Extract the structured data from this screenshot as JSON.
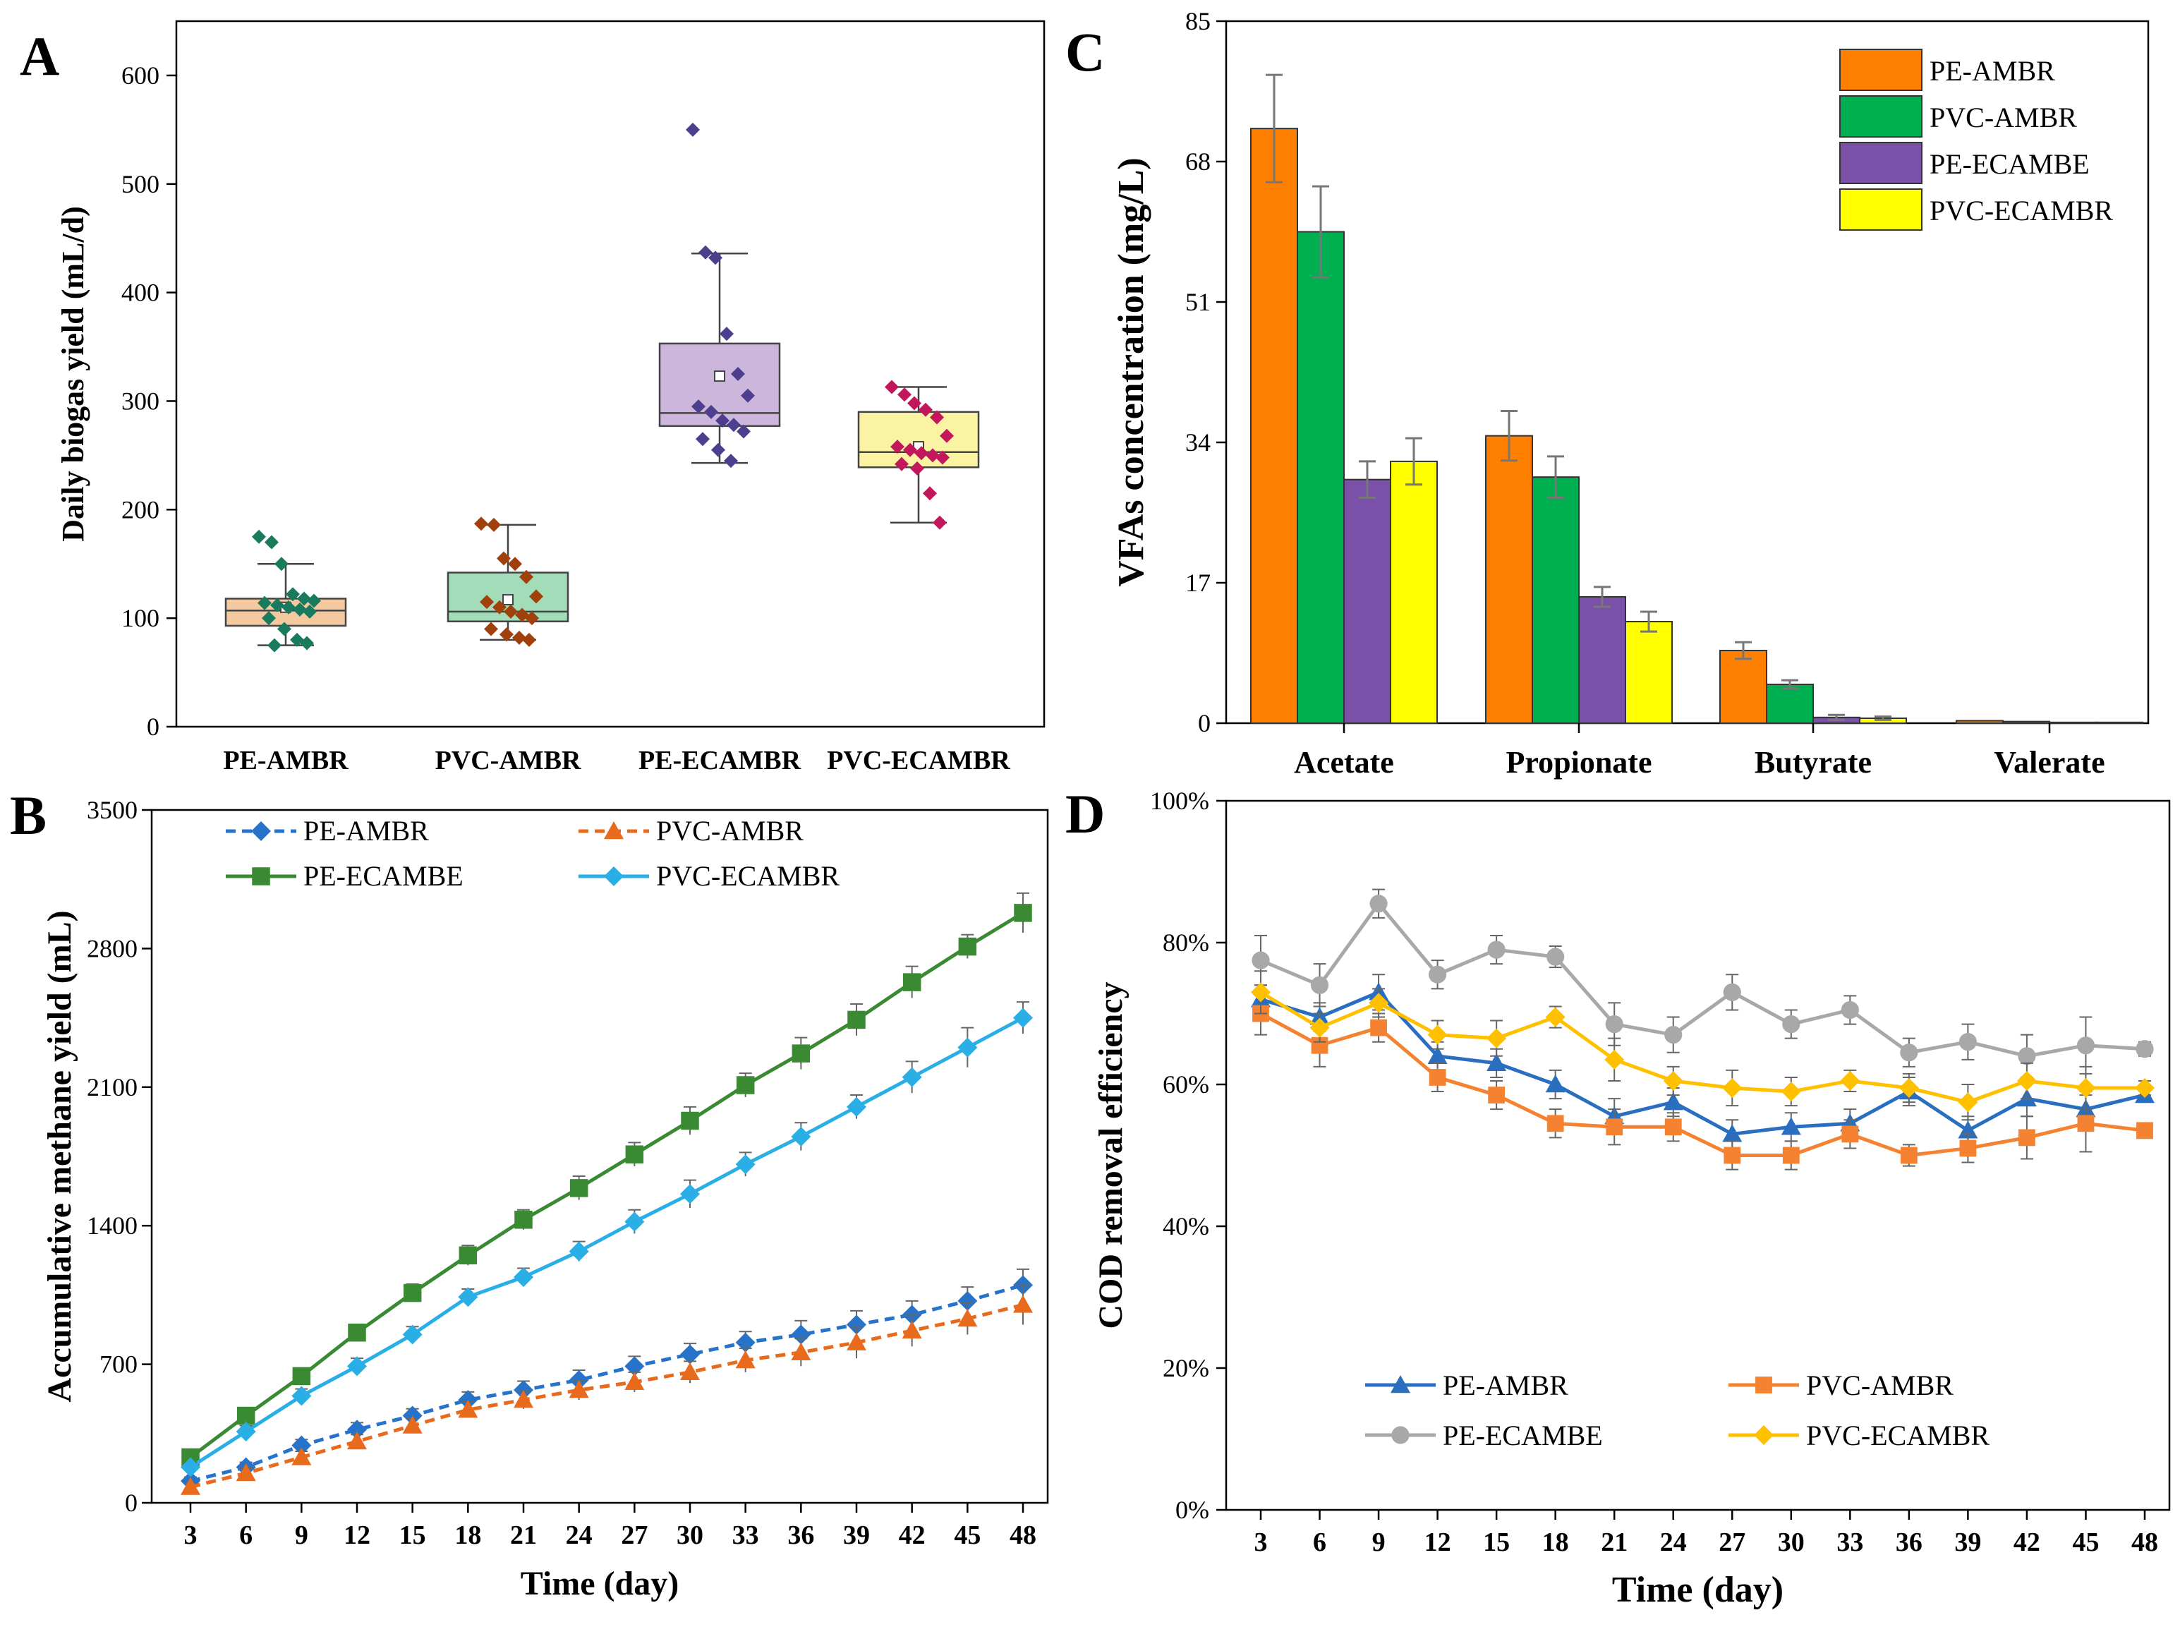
{
  "panels": {
    "A": "A",
    "B": "B",
    "C": "C",
    "D": "D"
  },
  "colors": {
    "pe_ambr_box": "#f5c9a0",
    "pvc_ambr_box": "#a3dcb8",
    "pe_ecambr_box": "#cdb6dc",
    "pvc_ecambr_box": "#fbf3a4",
    "pe_ambr_pts": "#1a7a5e",
    "pvc_ambr_pts": "#a0400c",
    "pe_ecambr_pts": "#4d3f8e",
    "pvc_ecambr_pts": "#c2185b",
    "orange": "#ff8000",
    "green": "#00b050",
    "purple": "#7b50a8",
    "yellow": "#ffff00",
    "b_pe_ambr": "#2673c9",
    "b_pvc_ambr": "#e86a1c",
    "b_pe_ecambe": "#3a8a34",
    "b_pvc_ecambr": "#29aee6",
    "d_pe_ambr": "#2a6fbf",
    "d_pvc_ambr": "#f48231",
    "d_pe_ecambe": "#a8a8a8",
    "d_pvc_ecambr": "#ffc000"
  },
  "chart_data": [
    {
      "id": "A",
      "type": "box",
      "title": "",
      "ylabel": "Daily biogas yield (mL/d)",
      "ylim": [
        0,
        650
      ],
      "yticks": [
        0,
        100,
        200,
        300,
        400,
        500,
        600
      ],
      "categories": [
        "PE-AMBR",
        "PVC-AMBR",
        "PE-ECAMBR",
        "PVC-ECAMBR"
      ],
      "boxes": [
        {
          "name": "PE-AMBR",
          "min": 75,
          "q1": 93,
          "median": 107,
          "q3": 118,
          "max": 150,
          "mean": 110,
          "points": [
            175,
            170,
            150,
            122,
            118,
            116,
            114,
            112,
            110,
            108,
            106,
            100,
            90,
            80,
            77,
            75
          ]
        },
        {
          "name": "PVC-AMBR",
          "min": 80,
          "q1": 97,
          "median": 106,
          "q3": 142,
          "max": 186,
          "mean": 117,
          "points": [
            187,
            186,
            155,
            150,
            138,
            120,
            115,
            110,
            106,
            103,
            100,
            90,
            85,
            82,
            80
          ]
        },
        {
          "name": "PE-ECAMBR",
          "min": 243,
          "q1": 277,
          "median": 289,
          "q3": 353,
          "max": 436,
          "mean": 323,
          "points": [
            550,
            437,
            432,
            362,
            325,
            305,
            295,
            290,
            282,
            278,
            272,
            265,
            255,
            245
          ]
        },
        {
          "name": "PVC-ECAMBR",
          "min": 188,
          "q1": 239,
          "median": 253,
          "q3": 290,
          "max": 313,
          "mean": 258,
          "points": [
            313,
            306,
            298,
            292,
            285,
            268,
            258,
            255,
            252,
            250,
            248,
            242,
            238,
            215,
            188
          ]
        }
      ]
    },
    {
      "id": "B",
      "type": "line",
      "xlabel": "Time (day)",
      "ylabel": "Accumulative methane yield (mL)",
      "ylim": [
        0,
        3500
      ],
      "yticks": [
        0,
        700,
        1400,
        2100,
        2800,
        3500
      ],
      "x": [
        3,
        6,
        9,
        12,
        15,
        18,
        21,
        24,
        27,
        30,
        33,
        36,
        39,
        42,
        45,
        48
      ],
      "series": [
        {
          "name": "PE-AMBR",
          "marker": "diamond",
          "dashed": true,
          "values": [
            110,
            180,
            290,
            370,
            440,
            520,
            570,
            620,
            690,
            750,
            810,
            850,
            900,
            950,
            1020,
            1100
          ],
          "err": [
            20,
            25,
            30,
            35,
            35,
            40,
            45,
            50,
            50,
            55,
            55,
            70,
            70,
            70,
            70,
            80
          ]
        },
        {
          "name": "PVC-AMBR",
          "marker": "triangle",
          "dashed": true,
          "values": [
            80,
            150,
            230,
            310,
            390,
            470,
            520,
            570,
            610,
            660,
            720,
            760,
            810,
            870,
            930,
            1000
          ],
          "err": [
            20,
            25,
            30,
            35,
            35,
            40,
            45,
            50,
            50,
            55,
            60,
            70,
            80,
            80,
            80,
            100
          ]
        },
        {
          "name": "PE-ECAMBE",
          "marker": "square",
          "dashed": false,
          "values": [
            230,
            440,
            640,
            860,
            1060,
            1250,
            1430,
            1590,
            1760,
            1930,
            2110,
            2270,
            2440,
            2630,
            2810,
            2980
          ],
          "err": [
            30,
            35,
            40,
            40,
            45,
            50,
            50,
            60,
            60,
            70,
            60,
            80,
            80,
            80,
            60,
            100
          ]
        },
        {
          "name": "PVC-ECAMBR",
          "marker": "diamond",
          "dashed": false,
          "values": [
            180,
            360,
            540,
            690,
            850,
            1040,
            1140,
            1270,
            1420,
            1560,
            1710,
            1850,
            2000,
            2150,
            2300,
            2450
          ],
          "err": [
            25,
            30,
            35,
            40,
            40,
            40,
            45,
            50,
            60,
            70,
            60,
            70,
            60,
            80,
            100,
            80
          ]
        }
      ]
    },
    {
      "id": "C",
      "type": "bar",
      "ylabel": "VFAs concentration (mg/L)",
      "ylim": [
        0,
        85
      ],
      "yticks": [
        0,
        17,
        34,
        51,
        68,
        85
      ],
      "categories": [
        "Acetate",
        "Propionate",
        "Butyrate",
        "Valerate"
      ],
      "series": [
        {
          "name": "PE-AMBR",
          "values": [
            72,
            34.8,
            8.8,
            0.3
          ],
          "err": [
            6.5,
            3,
            1,
            0
          ]
        },
        {
          "name": "PVC-AMBR",
          "values": [
            59.5,
            29.8,
            4.7,
            0.2
          ],
          "err": [
            5.5,
            2.5,
            0.5,
            0
          ]
        },
        {
          "name": "PE-ECAMBE",
          "values": [
            29.5,
            15.3,
            0.7,
            0.1
          ],
          "err": [
            2.2,
            1.2,
            0.3,
            0
          ]
        },
        {
          "name": "PVC-ECAMBR",
          "values": [
            31.7,
            12.3,
            0.6,
            0.1
          ],
          "err": [
            2.8,
            1.2,
            0.2,
            0
          ]
        }
      ]
    },
    {
      "id": "D",
      "type": "line",
      "xlabel": "Time (day)",
      "ylabel": "COD removal efficiency",
      "ylim": [
        0,
        100
      ],
      "yticks": [
        "0%",
        "20%",
        "40%",
        "60%",
        "80%",
        "100%"
      ],
      "x": [
        3,
        6,
        9,
        12,
        15,
        18,
        21,
        24,
        27,
        30,
        33,
        36,
        39,
        42,
        45,
        48
      ],
      "series": [
        {
          "name": "PE-AMBR",
          "marker": "triangle",
          "values": [
            72,
            69.5,
            73,
            64,
            63,
            60,
            55.5,
            57.5,
            53,
            54,
            54.5,
            59,
            53.5,
            58,
            56.5,
            58.5
          ],
          "err": [
            2,
            2,
            2.5,
            2,
            2,
            2,
            2.5,
            2,
            2,
            2,
            2,
            2,
            2,
            2.5,
            2.5,
            1
          ]
        },
        {
          "name": "PVC-AMBR",
          "marker": "square",
          "values": [
            70,
            65.5,
            68,
            61,
            58.5,
            54.5,
            54,
            54,
            50,
            50,
            53,
            50,
            51,
            52.5,
            54.5,
            53.5
          ],
          "err": [
            3,
            3,
            2,
            2,
            2,
            2,
            2.5,
            2,
            2,
            2,
            2,
            1.5,
            2,
            3,
            4,
            1
          ]
        },
        {
          "name": "PE-ECAMBE",
          "marker": "circle",
          "values": [
            77.5,
            74,
            85.5,
            75.5,
            79,
            78,
            68.5,
            67,
            73,
            68.5,
            70.5,
            64.5,
            66,
            64,
            65.5,
            65
          ],
          "err": [
            3.5,
            3,
            2,
            2,
            2,
            1.5,
            3,
            2.5,
            2.5,
            2,
            2,
            2,
            2.5,
            3,
            4,
            1
          ]
        },
        {
          "name": "PVC-ECAMBR",
          "marker": "diamond",
          "values": [
            73,
            68,
            71.5,
            67,
            66.5,
            69.5,
            63.5,
            60.5,
            59.5,
            59,
            60.5,
            59.5,
            57.5,
            60.5,
            59.5,
            59.5
          ],
          "err": [
            3,
            2,
            2,
            2,
            2.5,
            1.5,
            3,
            2,
            2.5,
            2,
            1.5,
            2,
            2.5,
            2.5,
            3,
            1
          ]
        }
      ]
    }
  ]
}
